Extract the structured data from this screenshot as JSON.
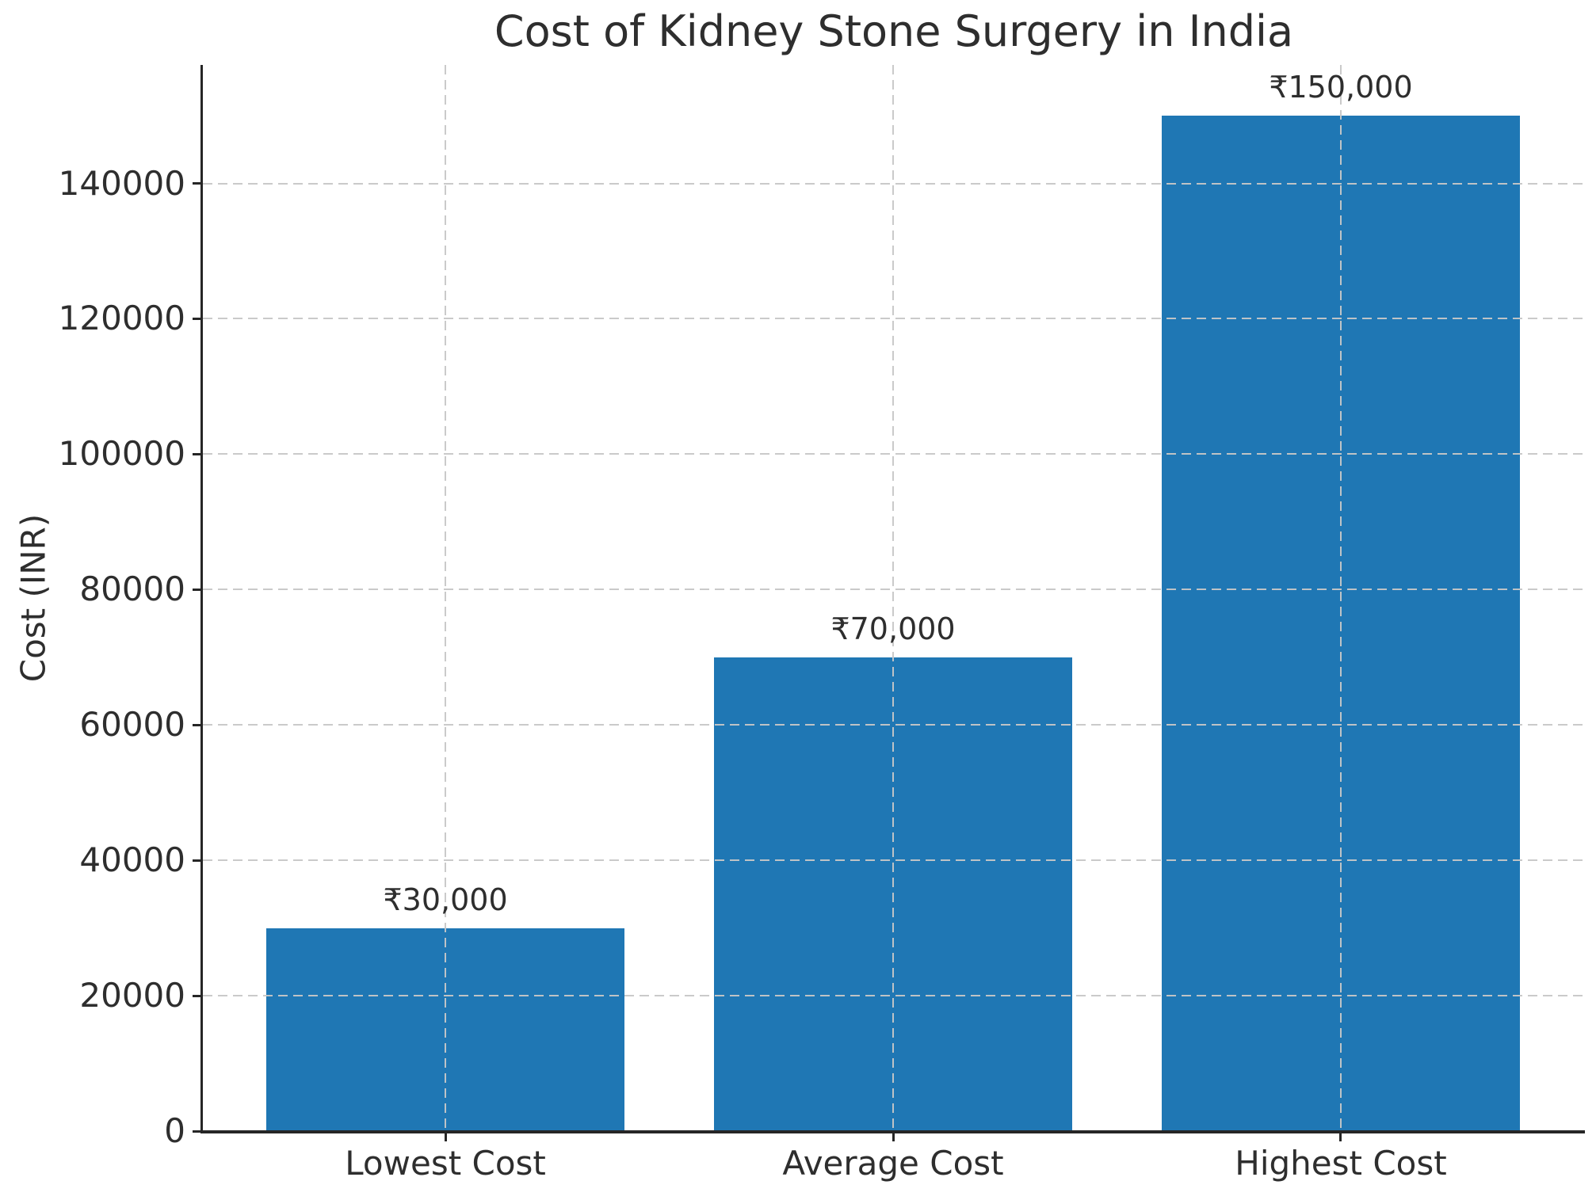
{
  "chart_data": {
    "type": "bar",
    "title": "Cost of Kidney Stone Surgery in India",
    "ylabel": "Cost (INR)",
    "xlabel": "",
    "categories": [
      "Lowest Cost",
      "Average Cost",
      "Highest Cost"
    ],
    "values": [
      30000,
      70000,
      150000
    ],
    "value_labels": [
      "₹30,000",
      "₹70,000",
      "₹150,000"
    ],
    "yticks": [
      0,
      20000,
      40000,
      60000,
      80000,
      100000,
      120000,
      140000
    ],
    "ylim": [
      0,
      157500
    ],
    "bar_color": "#1f77b4",
    "grid": "dashed-both-axes-over-bars",
    "legend": "none"
  }
}
